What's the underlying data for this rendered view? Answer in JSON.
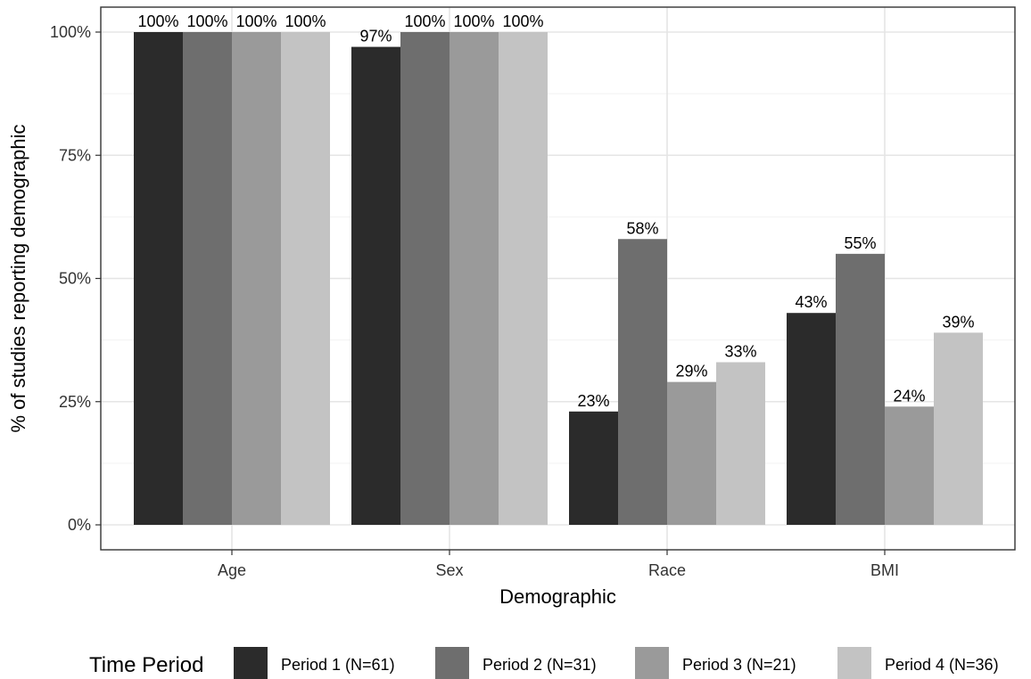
{
  "chart_data": {
    "type": "bar",
    "xlabel": "Demographic",
    "ylabel": "% of studies reporting demographic",
    "categories": [
      "Age",
      "Sex",
      "Race",
      "BMI"
    ],
    "ylim": [
      0,
      1.05
    ],
    "yticks": [
      0,
      0.25,
      0.5,
      0.75,
      1.0
    ],
    "ytick_labels": [
      "0%",
      "25%",
      "50%",
      "75%",
      "100%"
    ],
    "grid": true,
    "legend": {
      "title": "Time Period",
      "position": "bottom"
    },
    "series": [
      {
        "name": "Period 1 (N=61)",
        "color": "#2b2b2b",
        "values": [
          1.0,
          0.97,
          0.23,
          0.43
        ],
        "labels": [
          "100%",
          "97%",
          "23%",
          "43%"
        ]
      },
      {
        "name": "Period 2 (N=31)",
        "color": "#6e6e6e",
        "values": [
          1.0,
          1.0,
          0.58,
          0.55
        ],
        "labels": [
          "100%",
          "100%",
          "58%",
          "55%"
        ]
      },
      {
        "name": "Period 3 (N=21)",
        "color": "#9a9a9a",
        "values": [
          1.0,
          1.0,
          0.29,
          0.24
        ],
        "labels": [
          "100%",
          "100%",
          "29%",
          "24%"
        ]
      },
      {
        "name": "Period 4 (N=36)",
        "color": "#c3c3c3",
        "values": [
          1.0,
          1.0,
          0.33,
          0.39
        ],
        "labels": [
          "100%",
          "100%",
          "33%",
          "39%"
        ]
      }
    ]
  }
}
